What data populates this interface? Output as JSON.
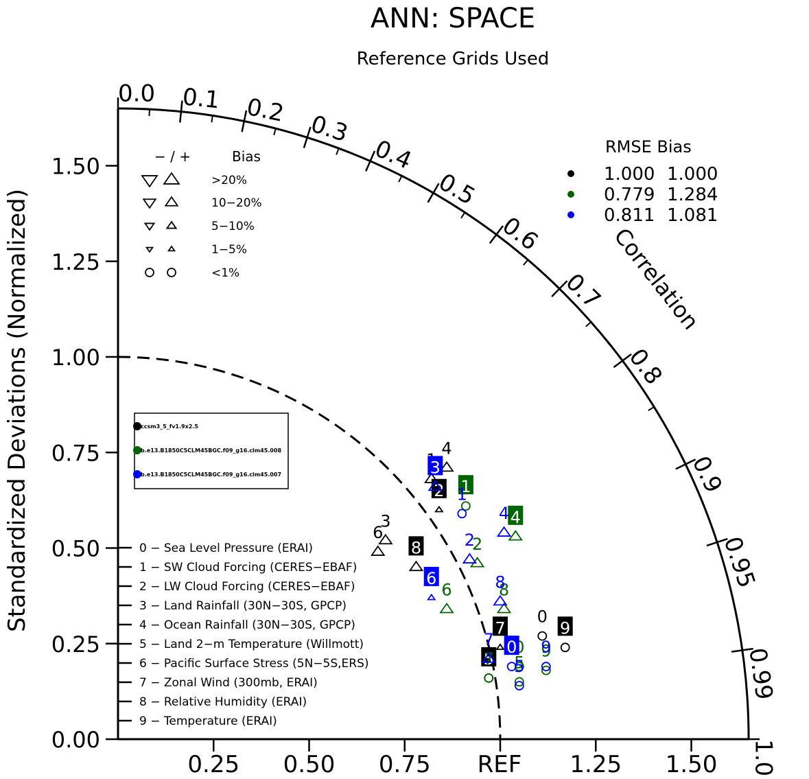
{
  "chart_data": {
    "type": "taylor",
    "title": "ANN: SPACE",
    "subtitle": "Reference Grids Used",
    "ylabel": "Standardized Deviations (Normalized)",
    "arc_label": "Correlation",
    "ref_label": "REF",
    "std_range": [
      0,
      1.65
    ],
    "y_ticks": [
      "0.00",
      "0.25",
      "0.50",
      "0.75",
      "1.00",
      "1.25",
      "1.50"
    ],
    "y_tick_values": [
      0,
      0.25,
      0.5,
      0.75,
      1.0,
      1.25,
      1.5
    ],
    "x_ticks": [
      "0.25",
      "0.50",
      "0.75",
      "1.25",
      "1.50"
    ],
    "x_tick_values": [
      0.25,
      0.5,
      0.75,
      1.25,
      1.5
    ],
    "corr_ticks": [
      "0.0",
      "0.1",
      "0.2",
      "0.3",
      "0.4",
      "0.5",
      "0.6",
      "0.7",
      "0.8",
      "0.9",
      "0.95",
      "0.99",
      "1.0"
    ],
    "corr_tick_values": [
      0.0,
      0.1,
      0.2,
      0.3,
      0.4,
      0.5,
      0.6,
      0.7,
      0.8,
      0.9,
      0.95,
      0.99,
      1.0
    ],
    "corr_minor_values": [
      0.05,
      0.15,
      0.25,
      0.35,
      0.45,
      0.55,
      0.65,
      0.75,
      0.85
    ],
    "bias_legend": {
      "header_signs": "−  /  +",
      "header": "Bias",
      "rows": [
        {
          "label": ">20%",
          "symbol": "tri",
          "size": 1.0
        },
        {
          "label": "10−20%",
          "symbol": "tri",
          "size": 0.8
        },
        {
          "label": "5−10%",
          "symbol": "tri",
          "size": 0.6
        },
        {
          "label": "1−5%",
          "symbol": "tri",
          "size": 0.4
        },
        {
          "label": "<1%",
          "symbol": "circle",
          "size": 0.5
        }
      ]
    },
    "rmse_legend": {
      "header": "RMSE  Bias",
      "rows": [
        {
          "color": "#000000",
          "rmse": "1.000",
          "bias": "1.000"
        },
        {
          "color": "#006400",
          "rmse": "0.779",
          "bias": "1.284"
        },
        {
          "color": "#0000ff",
          "rmse": "0.811",
          "bias": "1.081"
        }
      ]
    },
    "case_legend": [
      {
        "color": "#000000",
        "name": "ccsm3_5_fv1.9x2.5"
      },
      {
        "color": "#006400",
        "name": "b.e13.B1850C5CLM45BGC.f09_g16.clm45.008"
      },
      {
        "color": "#0000ff",
        "name": "b.e13.B1850C5CLM45BGC.f09_g16.clm45.007"
      }
    ],
    "variables": [
      "0 − Sea Level Pressure (ERAI)",
      "1 − SW Cloud Forcing (CERES−EBAF)",
      "2 − LW Cloud Forcing (CERES−EBAF)",
      "3 − Land Rainfall (30N−30S, GPCP)",
      "4 − Ocean Rainfall (30N−30S, GPCP)",
      "5 − Land 2−m Temperature (Willmott)",
      "6 − Pacific Surface Stress (5N−5S,ERS)",
      "7 − Zonal Wind (300mb, ERAI)",
      "8 − Relative Humidity (ERAI)",
      "9 − Temperature (ERAI)"
    ],
    "series": [
      {
        "name": "ccsm3_5_fv1.9x2.5",
        "color": "#000000",
        "points": [
          {
            "label": "0",
            "x": 1.11,
            "y": 0.27,
            "marker": "circle",
            "boxed": false
          },
          {
            "label": "1",
            "x": 0.82,
            "y": 0.68,
            "marker": "tri-up",
            "boxed": false
          },
          {
            "label": "2",
            "x": 0.84,
            "y": 0.6,
            "marker": "tri-up-small",
            "boxed": true
          },
          {
            "label": "3",
            "x": 0.7,
            "y": 0.52,
            "marker": "tri-up",
            "boxed": false
          },
          {
            "label": "4",
            "x": 0.86,
            "y": 0.71,
            "marker": "tri-up",
            "boxed": false
          },
          {
            "label": "5",
            "x": 0.97,
            "y": 0.16,
            "marker": "circle",
            "boxed": true
          },
          {
            "label": "6",
            "x": 0.68,
            "y": 0.49,
            "marker": "tri-up",
            "boxed": false
          },
          {
            "label": "7",
            "x": 1.0,
            "y": 0.24,
            "marker": "tri-up-small",
            "boxed": true
          },
          {
            "label": "8",
            "x": 0.78,
            "y": 0.45,
            "marker": "tri-up",
            "boxed": true
          },
          {
            "label": "9",
            "x": 1.17,
            "y": 0.24,
            "marker": "circle",
            "boxed": true
          }
        ]
      },
      {
        "name": "b.e13.B1850C5CLM45BGC.f09_g16.clm45.008",
        "color": "#006400",
        "points": [
          {
            "label": "0",
            "x": 1.05,
            "y": 0.19,
            "marker": "circle",
            "boxed": false
          },
          {
            "label": "1",
            "x": 0.91,
            "y": 0.61,
            "marker": "circle",
            "boxed": true
          },
          {
            "label": "2",
            "x": 0.94,
            "y": 0.46,
            "marker": "tri-up",
            "boxed": false
          },
          {
            "label": "3",
            "x": 0.83,
            "y": 0.66,
            "marker": "tri-up",
            "boxed": false
          },
          {
            "label": "4",
            "x": 1.04,
            "y": 0.53,
            "marker": "tri-up",
            "boxed": true
          },
          {
            "label": "5",
            "x": 1.05,
            "y": 0.15,
            "marker": "circle",
            "boxed": false
          },
          {
            "label": "6",
            "x": 0.86,
            "y": 0.34,
            "marker": "tri-up",
            "boxed": false
          },
          {
            "label": "7",
            "x": 0.97,
            "y": 0.16,
            "marker": "circle",
            "boxed": false
          },
          {
            "label": "8",
            "x": 1.01,
            "y": 0.34,
            "marker": "tri-up",
            "boxed": false
          },
          {
            "label": "9",
            "x": 1.12,
            "y": 0.18,
            "marker": "circle",
            "boxed": false
          }
        ]
      },
      {
        "name": "b.e13.B1850C5CLM45BGC.f09_g16.clm45.007",
        "color": "#0000ff",
        "points": [
          {
            "label": "0",
            "x": 1.03,
            "y": 0.19,
            "marker": "circle",
            "boxed": true
          },
          {
            "label": "1",
            "x": 0.9,
            "y": 0.59,
            "marker": "circle",
            "boxed": false
          },
          {
            "label": "2",
            "x": 0.92,
            "y": 0.47,
            "marker": "tri-up",
            "boxed": false
          },
          {
            "label": "3",
            "x": 0.83,
            "y": 0.66,
            "marker": "tri-up",
            "boxed": true
          },
          {
            "label": "4",
            "x": 1.01,
            "y": 0.54,
            "marker": "tri-up",
            "boxed": false
          },
          {
            "label": "5",
            "x": 1.05,
            "y": 0.14,
            "marker": "circle",
            "boxed": false
          },
          {
            "label": "6",
            "x": 0.82,
            "y": 0.37,
            "marker": "tri-up-small",
            "boxed": true
          },
          {
            "label": "7",
            "x": 0.97,
            "y": 0.21,
            "marker": "tri-up",
            "boxed": false
          },
          {
            "label": "8",
            "x": 1.0,
            "y": 0.36,
            "marker": "tri-up",
            "boxed": false
          },
          {
            "label": "9",
            "x": 1.12,
            "y": 0.19,
            "marker": "circle",
            "boxed": false
          }
        ]
      }
    ]
  }
}
